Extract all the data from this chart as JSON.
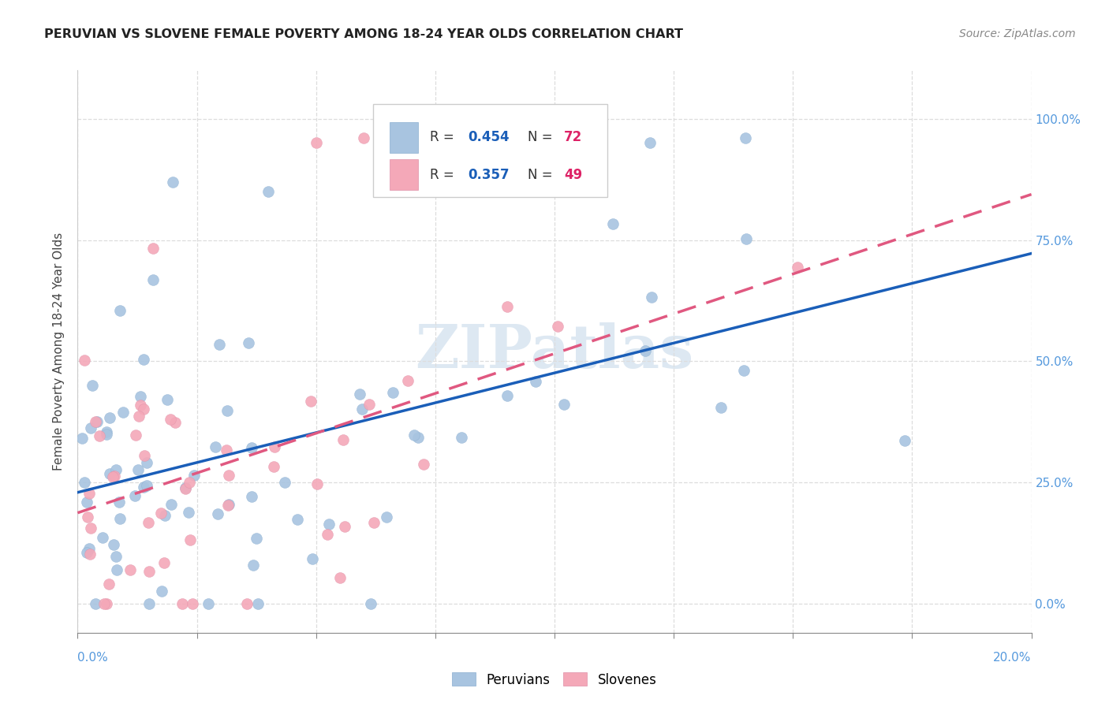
{
  "title": "PERUVIAN VS SLOVENE FEMALE POVERTY AMONG 18-24 YEAR OLDS CORRELATION CHART",
  "source": "Source: ZipAtlas.com",
  "ylabel": "Female Poverty Among 18-24 Year Olds",
  "right_yticklabels": [
    "0.0%",
    "25.0%",
    "50.0%",
    "75.0%",
    "100.0%"
  ],
  "right_ytick_vals": [
    0.0,
    0.25,
    0.5,
    0.75,
    1.0
  ],
  "xlim": [
    0.0,
    0.2
  ],
  "ylim": [
    -0.06,
    1.1
  ],
  "peruvian_color": "#a8c4e0",
  "slovene_color": "#f4a8b8",
  "peruvian_line_color": "#1a5eb8",
  "slovene_line_color": "#e05880",
  "peruvian_R": 0.454,
  "peruvian_N": 72,
  "slovene_R": 0.357,
  "slovene_N": 49,
  "watermark": "ZIPatlas",
  "background_color": "#ffffff",
  "grid_color": "#dddddd",
  "title_color": "#222222",
  "source_color": "#888888",
  "axis_label_color": "#444444",
  "right_axis_color": "#5599dd",
  "bottom_axis_color": "#5599dd"
}
